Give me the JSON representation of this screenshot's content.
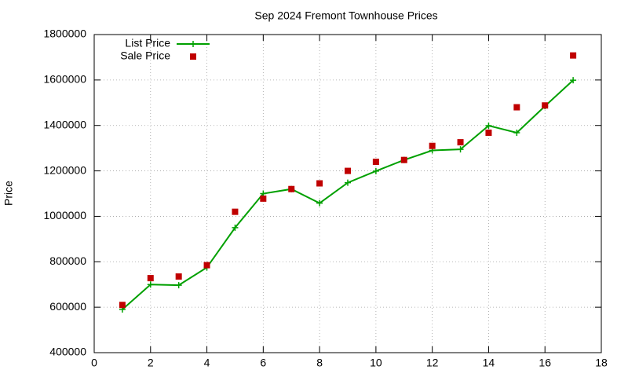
{
  "chart_data": {
    "type": "line",
    "title": "Sep 2024 Fremont Townhouse Prices",
    "y_label": "Price",
    "x": [
      1,
      2,
      3,
      4,
      5,
      6,
      7,
      8,
      9,
      10,
      11,
      12,
      13,
      14,
      15,
      16,
      17
    ],
    "series": [
      {
        "name": "List Price",
        "color": "#00a000",
        "mode": "linespoints",
        "values": [
          590000,
          700000,
          697000,
          775000,
          950000,
          1100000,
          1120000,
          1058000,
          1148000,
          1199000,
          1248000,
          1290000,
          1295000,
          1399000,
          1368000,
          1485000,
          1599000
        ]
      },
      {
        "name": "Sale Price",
        "color": "#c00000",
        "mode": "points",
        "values": [
          610000,
          728000,
          735000,
          785000,
          1020000,
          1078000,
          1120000,
          1145000,
          1200000,
          1240000,
          1248000,
          1310000,
          1326000,
          1368000,
          1480000,
          1488000,
          1708000
        ]
      }
    ],
    "xlim": [
      0,
      18
    ],
    "xticks": [
      0,
      2,
      4,
      6,
      8,
      10,
      12,
      14,
      16,
      18
    ],
    "ylim": [
      400000,
      1800000
    ],
    "yticks": [
      400000,
      600000,
      800000,
      1000000,
      1200000,
      1400000,
      1600000,
      1800000
    ],
    "grid": true,
    "legend": "top-left"
  }
}
